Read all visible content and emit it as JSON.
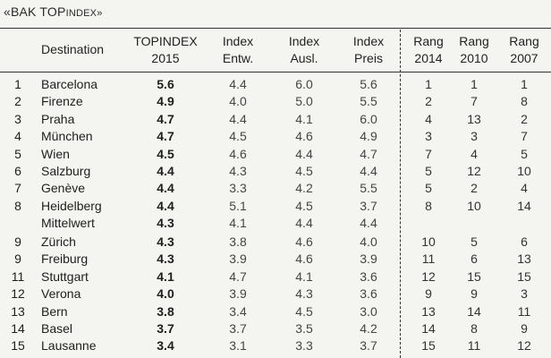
{
  "title": {
    "prefix": "«BAK TOP",
    "suffix": "INDEX»"
  },
  "headers": {
    "destination": "Destination",
    "topindex_line1": "TOPINDEX",
    "topindex_line2": "2015",
    "entw_line1": "Index",
    "entw_line2": "Entw.",
    "ausl_line1": "Index",
    "ausl_line2": "Ausl.",
    "preis_line1": "Index",
    "preis_line2": "Preis",
    "r2014_line1": "Rang",
    "r2014_line2": "2014",
    "r2010_line1": "Rang",
    "r2010_line2": "2010",
    "r2007_line1": "Rang",
    "r2007_line2": "2007"
  },
  "rows": [
    {
      "rank": "1",
      "dest": "Barcelona",
      "top": "5.6",
      "entw": "4.4",
      "ausl": "6.0",
      "preis": "5.6",
      "r2014": "1",
      "r2010": "1",
      "r2007": "1"
    },
    {
      "rank": "2",
      "dest": "Firenze",
      "top": "4.9",
      "entw": "4.0",
      "ausl": "5.0",
      "preis": "5.5",
      "r2014": "2",
      "r2010": "7",
      "r2007": "8"
    },
    {
      "rank": "3",
      "dest": "Praha",
      "top": "4.7",
      "entw": "4.4",
      "ausl": "4.1",
      "preis": "6.0",
      "r2014": "4",
      "r2010": "13",
      "r2007": "2"
    },
    {
      "rank": "4",
      "dest": "München",
      "top": "4.7",
      "entw": "4.5",
      "ausl": "4.6",
      "preis": "4.9",
      "r2014": "3",
      "r2010": "3",
      "r2007": "7"
    },
    {
      "rank": "5",
      "dest": "Wien",
      "top": "4.5",
      "entw": "4.6",
      "ausl": "4.4",
      "preis": "4.7",
      "r2014": "7",
      "r2010": "4",
      "r2007": "5"
    },
    {
      "rank": "6",
      "dest": "Salzburg",
      "top": "4.4",
      "entw": "4.3",
      "ausl": "4.5",
      "preis": "4.4",
      "r2014": "5",
      "r2010": "12",
      "r2007": "10"
    },
    {
      "rank": "7",
      "dest": "Genève",
      "top": "4.4",
      "entw": "3.3",
      "ausl": "4.2",
      "preis": "5.5",
      "r2014": "5",
      "r2010": "2",
      "r2007": "4"
    },
    {
      "rank": "8",
      "dest": "Heidelberg",
      "top": "4.4",
      "entw": "5.1",
      "ausl": "4.5",
      "preis": "3.7",
      "r2014": "8",
      "r2010": "10",
      "r2007": "14"
    },
    {
      "rank": "",
      "dest": "Mittelwert",
      "top": "4.3",
      "entw": "4.1",
      "ausl": "4.4",
      "preis": "4.4",
      "r2014": "",
      "r2010": "",
      "r2007": ""
    },
    {
      "rank": "9",
      "dest": "Zürich",
      "top": "4.3",
      "entw": "3.8",
      "ausl": "4.6",
      "preis": "4.0",
      "r2014": "10",
      "r2010": "5",
      "r2007": "6"
    },
    {
      "rank": "9",
      "dest": "Freiburg",
      "top": "4.3",
      "entw": "3.9",
      "ausl": "4.6",
      "preis": "3.9",
      "r2014": "11",
      "r2010": "6",
      "r2007": "13"
    },
    {
      "rank": "11",
      "dest": "Stuttgart",
      "top": "4.1",
      "entw": "4.7",
      "ausl": "4.1",
      "preis": "3.6",
      "r2014": "12",
      "r2010": "15",
      "r2007": "15"
    },
    {
      "rank": "12",
      "dest": "Verona",
      "top": "4.0",
      "entw": "3.9",
      "ausl": "4.3",
      "preis": "3.6",
      "r2014": "9",
      "r2010": "9",
      "r2007": "3"
    },
    {
      "rank": "13",
      "dest": "Bern",
      "top": "3.8",
      "entw": "3.4",
      "ausl": "4.5",
      "preis": "3.0",
      "r2014": "13",
      "r2010": "14",
      "r2007": "11"
    },
    {
      "rank": "14",
      "dest": "Basel",
      "top": "3.7",
      "entw": "3.7",
      "ausl": "3.5",
      "preis": "4.2",
      "r2014": "14",
      "r2010": "8",
      "r2007": "9"
    },
    {
      "rank": "15",
      "dest": "Lausanne",
      "top": "3.4",
      "entw": "3.1",
      "ausl": "3.3",
      "preis": "3.7",
      "r2014": "15",
      "r2010": "11",
      "r2007": "12"
    }
  ]
}
